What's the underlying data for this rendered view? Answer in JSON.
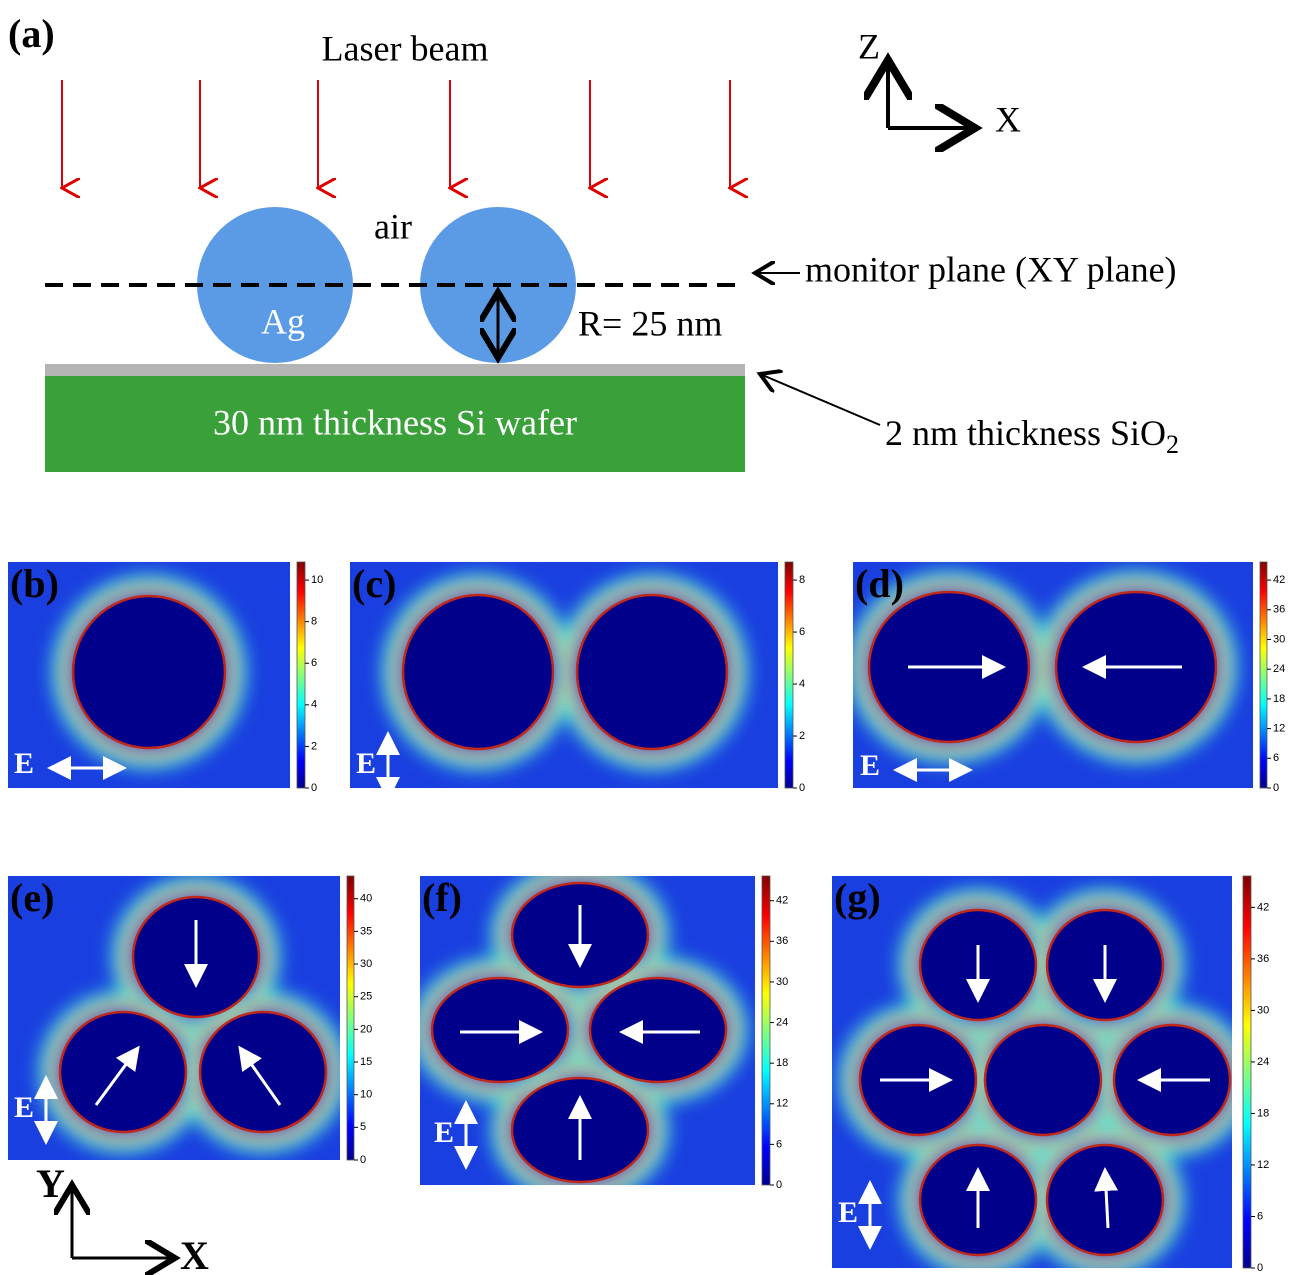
{
  "panel_a": {
    "label": "(a)",
    "laser": "Laser beam",
    "air": "air",
    "ag": "Ag",
    "monitor": "monitor plane (XY plane)",
    "radius": "R= 25 nm",
    "wafer": "30 nm thickness Si wafer",
    "oxide": "2 nm thickness SiO",
    "oxide_sub": "2",
    "axis_z": "Z",
    "axis_x": "X"
  },
  "panels": [
    {
      "label": "(b)",
      "field": "E",
      "colorbar_ticks": [
        0,
        2,
        4,
        6,
        8,
        10
      ]
    },
    {
      "label": "(c)",
      "field": "E",
      "colorbar_ticks": [
        0,
        2,
        4,
        6,
        8
      ]
    },
    {
      "label": "(d)",
      "field": "E",
      "colorbar_ticks": [
        0,
        6,
        12,
        18,
        24,
        30,
        36,
        42
      ]
    },
    {
      "label": "(e)",
      "field": "E",
      "colorbar_ticks": [
        0,
        5,
        10,
        15,
        20,
        25,
        30,
        35,
        40
      ]
    },
    {
      "label": "(f)",
      "field": "E",
      "colorbar_ticks": [
        0,
        6,
        12,
        18,
        24,
        30,
        36,
        42
      ]
    },
    {
      "label": "(g)",
      "field": "E",
      "colorbar_ticks": [
        0,
        6,
        12,
        18,
        24,
        30,
        36,
        42
      ]
    }
  ],
  "xy_axes": {
    "y": "Y",
    "x": "X"
  }
}
